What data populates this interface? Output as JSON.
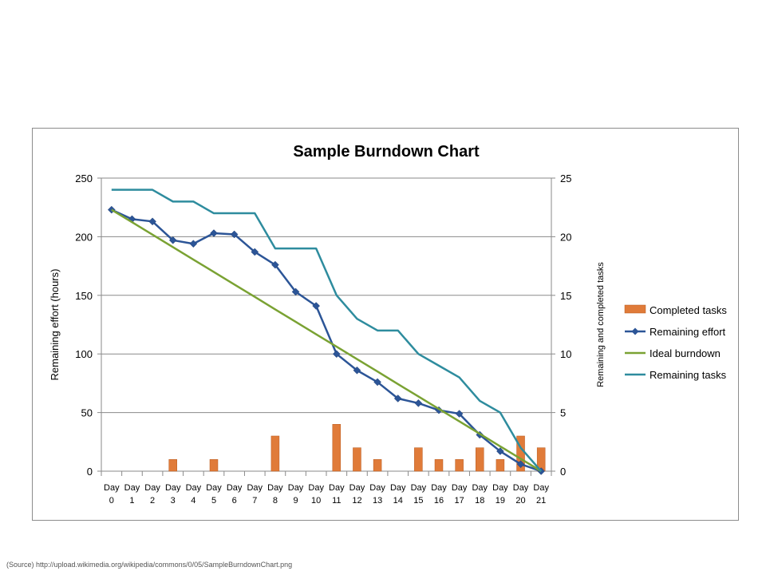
{
  "chart_data": {
    "type": "bar+line",
    "title": "Sample Burndown Chart",
    "categories": [
      "Day 0",
      "Day 1",
      "Day 2",
      "Day 3",
      "Day 4",
      "Day 5",
      "Day 6",
      "Day 7",
      "Day 8",
      "Day 9",
      "Day 10",
      "Day 11",
      "Day 12",
      "Day 13",
      "Day 14",
      "Day 15",
      "Day 16",
      "Day 17",
      "Day 18",
      "Day 19",
      "Day 20",
      "Day 21"
    ],
    "category_lines": [
      [
        "Day",
        "0"
      ],
      [
        "Day",
        "1"
      ],
      [
        "Day",
        "2"
      ],
      [
        "Day",
        "3"
      ],
      [
        "Day",
        "4"
      ],
      [
        "Day",
        "5"
      ],
      [
        "Day",
        "6"
      ],
      [
        "Day",
        "7"
      ],
      [
        "Day",
        "8"
      ],
      [
        "Day",
        "9"
      ],
      [
        "Day",
        "10"
      ],
      [
        "Day",
        "11"
      ],
      [
        "Day",
        "12"
      ],
      [
        "Day",
        "13"
      ],
      [
        "Day",
        "14"
      ],
      [
        "Day",
        "15"
      ],
      [
        "Day",
        "16"
      ],
      [
        "Day",
        "17"
      ],
      [
        "Day",
        "18"
      ],
      [
        "Day",
        "19"
      ],
      [
        "Day",
        "20"
      ],
      [
        "Day",
        "21"
      ]
    ],
    "ylabel": "Remaining effort (hours)",
    "ylabel_right": "Remaining and  completed tasks",
    "ylim": [
      0,
      250
    ],
    "ylim_right": [
      0,
      25
    ],
    "yticks": [
      "0",
      "50",
      "100",
      "150",
      "200",
      "250"
    ],
    "yticks_right": [
      "0",
      "5",
      "10",
      "15",
      "20",
      "25"
    ],
    "grid": "horizontal",
    "legend_position": "right",
    "series": [
      {
        "name": "Completed tasks",
        "type": "bar",
        "axis": "right",
        "color": "#e07b39",
        "values": [
          0,
          0,
          0,
          1,
          0,
          1,
          0,
          0,
          3,
          0,
          0,
          4,
          2,
          1,
          0,
          2,
          1,
          1,
          2,
          1,
          3,
          2
        ]
      },
      {
        "name": "Remaining effort",
        "type": "line",
        "axis": "left",
        "color": "#2c5597",
        "marker": "diamond",
        "values": [
          223,
          215,
          213,
          197,
          194,
          203,
          202,
          187,
          176,
          153,
          141,
          100,
          86,
          76,
          62,
          58,
          52,
          49,
          31,
          17,
          6,
          0
        ]
      },
      {
        "name": "Ideal burndown",
        "type": "line",
        "axis": "left",
        "color": "#7aa233",
        "values": [
          223,
          212.4,
          201.8,
          191.1,
          180.5,
          169.9,
          159.3,
          148.7,
          138,
          127.4,
          116.8,
          106.2,
          95.6,
          85,
          74.3,
          63.7,
          53.1,
          42.5,
          31.9,
          21.2,
          10.6,
          0
        ]
      },
      {
        "name": "Remaining tasks",
        "type": "line",
        "axis": "right",
        "color": "#2e8c9e",
        "values": [
          24,
          24,
          24,
          23,
          23,
          22,
          22,
          22,
          19,
          19,
          19,
          15,
          13,
          12,
          12,
          10,
          9,
          8,
          6,
          5,
          2,
          0
        ]
      }
    ]
  },
  "source_note": "(Source) http://upload.wikimedia.org/wikipedia/commons/0/05/SampleBurndownChart.png"
}
